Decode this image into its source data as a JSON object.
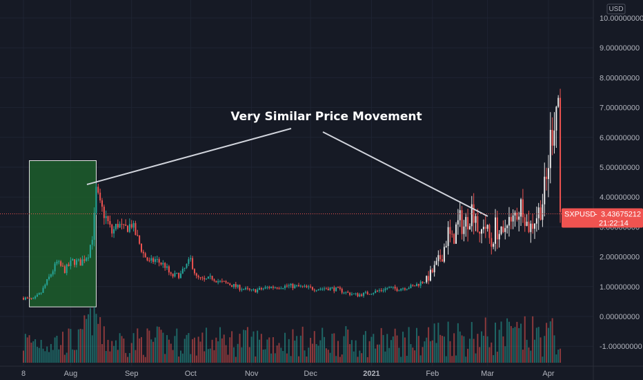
{
  "chart_data": {
    "type": "candlestick",
    "symbol": "SXPUSD",
    "currency": "USD",
    "last_price": "3.43675212",
    "countdown": "21:22:14",
    "annotation": "Very Similar Price Movement",
    "ylim": [
      -1.25,
      10.25
    ],
    "y_ticks": [
      "10.00000000",
      "9.00000000",
      "8.00000000",
      "7.00000000",
      "6.00000000",
      "5.00000000",
      "4.00000000",
      "3.00000000",
      "2.00000000",
      "1.00000000",
      "0.00000000",
      "-1.00000000"
    ],
    "y_tick_values": [
      10,
      9,
      8,
      7,
      6,
      5,
      4,
      3,
      2,
      1,
      0,
      -1
    ],
    "x_ticks": [
      "8",
      "Aug",
      "Sep",
      "Oct",
      "Nov",
      "Dec",
      "2021",
      "Feb",
      "Mar",
      "Apr"
    ],
    "x_tick_days": [
      0,
      24,
      55,
      85,
      116,
      146,
      177,
      208,
      236,
      267
    ],
    "highlight_box": {
      "start_day": 3,
      "end_day": 37,
      "low": 0.32,
      "high": 5.22
    },
    "price_anchors": [
      [
        0,
        0.62
      ],
      [
        5,
        0.56
      ],
      [
        9,
        0.8
      ],
      [
        13,
        1.3
      ],
      [
        17,
        1.8
      ],
      [
        21,
        1.55
      ],
      [
        25,
        1.85
      ],
      [
        29,
        1.8
      ],
      [
        33,
        2.1
      ],
      [
        35,
        2.7
      ],
      [
        36,
        3.3
      ],
      [
        37,
        4.2
      ],
      [
        39,
        3.7
      ],
      [
        42,
        3.3
      ],
      [
        45,
        2.8
      ],
      [
        48,
        3.1
      ],
      [
        51,
        2.9
      ],
      [
        55,
        3.1
      ],
      [
        58,
        2.6
      ],
      [
        61,
        2.1
      ],
      [
        64,
        1.8
      ],
      [
        67,
        1.9
      ],
      [
        72,
        1.7
      ],
      [
        75,
        1.35
      ],
      [
        80,
        1.4
      ],
      [
        85,
        1.9
      ],
      [
        88,
        1.3
      ],
      [
        92,
        1.2
      ],
      [
        96,
        1.3
      ],
      [
        100,
        1.15
      ],
      [
        104,
        1.1
      ],
      [
        108,
        1.0
      ],
      [
        112,
        0.92
      ],
      [
        116,
        0.85
      ],
      [
        120,
        0.9
      ],
      [
        125,
        0.98
      ],
      [
        130,
        1.0
      ],
      [
        135,
        1.02
      ],
      [
        140,
        1.0
      ],
      [
        145,
        0.95
      ],
      [
        150,
        0.93
      ],
      [
        155,
        0.95
      ],
      [
        160,
        0.9
      ],
      [
        165,
        0.78
      ],
      [
        170,
        0.72
      ],
      [
        175,
        0.78
      ],
      [
        180,
        0.85
      ],
      [
        185,
        0.95
      ],
      [
        190,
        0.92
      ],
      [
        195,
        0.98
      ],
      [
        198,
        1.0
      ],
      [
        201,
        1.1
      ],
      [
        204,
        1.2
      ],
      [
        207,
        1.4
      ],
      [
        210,
        1.7
      ],
      [
        213,
        2.1
      ],
      [
        216,
        2.8
      ],
      [
        218,
        2.5
      ],
      [
        220,
        2.95
      ],
      [
        222,
        3.2
      ],
      [
        224,
        3.0
      ],
      [
        226,
        3.3
      ],
      [
        228,
        3.6
      ],
      [
        230,
        3.5
      ],
      [
        232,
        2.5
      ],
      [
        234,
        3.2
      ],
      [
        236,
        2.8
      ],
      [
        238,
        2.4
      ],
      [
        240,
        3.0
      ],
      [
        242,
        2.8
      ],
      [
        244,
        2.6
      ],
      [
        246,
        3.4
      ],
      [
        248,
        3.0
      ],
      [
        250,
        3.4
      ],
      [
        252,
        3.6
      ],
      [
        254,
        3.8
      ],
      [
        256,
        3.1
      ],
      [
        258,
        3.0
      ],
      [
        260,
        3.3
      ],
      [
        262,
        3.5
      ],
      [
        264,
        3.9
      ],
      [
        266,
        4.5
      ],
      [
        268,
        5.9
      ],
      [
        270,
        6.8
      ],
      [
        272,
        7.4
      ],
      [
        273,
        3.44
      ]
    ],
    "volume_label": "Volume bars"
  }
}
